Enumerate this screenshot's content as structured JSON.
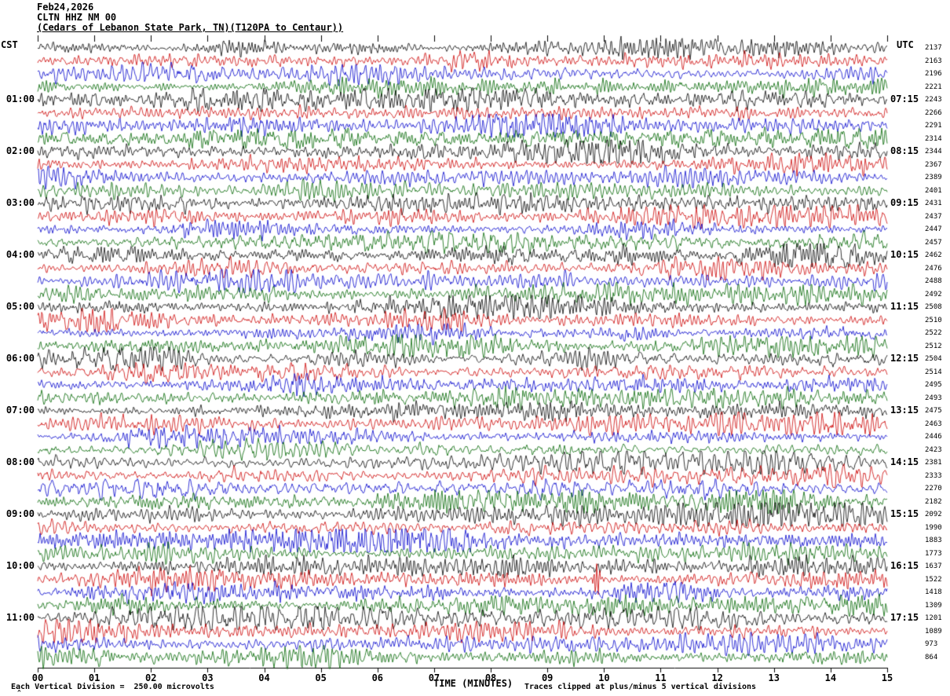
{
  "header": {
    "date": "Feb24,2026",
    "station": "CLTN HHZ NM 00",
    "description": "(Cedars of Lebanon State Park, TN)(T120PA to Centaur))"
  },
  "axes": {
    "left_timezone": "CST",
    "right_timezone": "UTC"
  },
  "footer": {
    "corner_mark": "^"
  },
  "chart_data": {
    "type": "line",
    "subtype": "helicorder-seismogram",
    "title": "CLTN HHZ NM 00 (Cedars of Lebanon State Park, TN) Feb24,2026",
    "x_axis": {
      "label": "TIME (MINUTES)",
      "range": [
        0,
        15
      ],
      "tick_labels": [
        "00",
        "01",
        "02",
        "03",
        "04",
        "05",
        "06",
        "07",
        "08",
        "09",
        "10",
        "11",
        "12",
        "13",
        "14",
        "15"
      ]
    },
    "num_traces": 48,
    "minutes_per_trace": 15,
    "trace_color_cycle": [
      "#000000",
      "#cc0000",
      "#0000cc",
      "#006600"
    ],
    "left_time_labels_cst": [
      "01:00",
      "02:00",
      "03:00",
      "04:00",
      "05:00",
      "06:00",
      "07:00",
      "08:00",
      "09:00",
      "10:00",
      "11:00"
    ],
    "right_time_labels_utc": [
      "07:15",
      "08:15",
      "09:15",
      "10:15",
      "11:15",
      "12:15",
      "13:15",
      "14:15",
      "15:15",
      "16:15",
      "17:15"
    ],
    "trace_right_values": [
      2137,
      2163,
      2196,
      2221,
      2243,
      2266,
      2291,
      2314,
      2344,
      2367,
      2389,
      2401,
      2431,
      2437,
      2447,
      2457,
      2462,
      2476,
      2488,
      2492,
      2508,
      2510,
      2522,
      2512,
      2504,
      2514,
      2495,
      2493,
      2475,
      2463,
      2446,
      2423,
      2381,
      2333,
      2270,
      2182,
      2092,
      1990,
      1883,
      1773,
      1637,
      1522,
      1418,
      1309,
      1201,
      1089,
      973,
      864
    ],
    "scale_note": "Each Vertical Division =  250.00 microvolts",
    "clip_note": "Traces clipped at plus/minus 5 vertical divisions",
    "waveform_note": "Continuous microseismic background noise of roughly uniform amplitude on all 48 quarter-hour traces",
    "events": [
      {
        "trace_index": 41,
        "minute": 9.87,
        "kind": "spike",
        "amp": 24,
        "description": "large red spike on 10:15 CST red trace"
      },
      {
        "trace_index": 44,
        "minute": 4.95,
        "kind": "burst",
        "amp": 1.1,
        "width": 9,
        "description": "short high-amplitude black burst near minute 5 of 11:00 CST trace"
      }
    ],
    "grid": false,
    "legend": false
  }
}
